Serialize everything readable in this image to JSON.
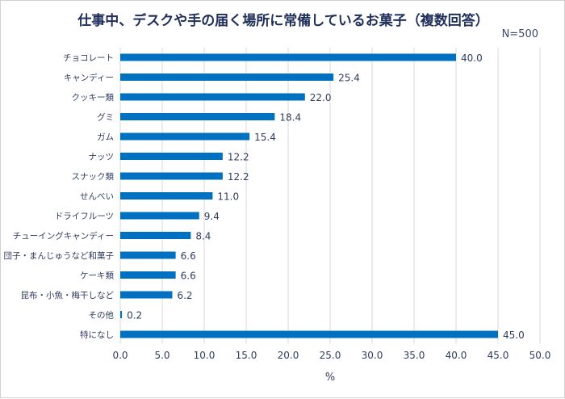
{
  "chart_data": {
    "type": "bar",
    "orientation": "horizontal",
    "title": "仕事中、デスクや手の届く場所に常備しているお菓子（複数回答）",
    "note": "N=500",
    "categories": [
      "チョコレート",
      "キャンディー",
      "クッキー類",
      "グミ",
      "ガム",
      "ナッツ",
      "スナック類",
      "せんべい",
      "ドライフルーツ",
      "チューイングキャンディー",
      "団子・まんじゅうなど和菓子",
      "ケーキ類",
      "昆布・小魚・梅干しなど",
      "その他",
      "特になし"
    ],
    "values": [
      40.0,
      25.4,
      22.0,
      18.4,
      15.4,
      12.2,
      12.2,
      11.0,
      9.4,
      8.4,
      6.6,
      6.6,
      6.2,
      0.2,
      45.0
    ],
    "value_labels": [
      "40.0",
      "25.4",
      "22.0",
      "18.4",
      "15.4",
      "12.2",
      "12.2",
      "11.0",
      "9.4",
      "8.4",
      "6.6",
      "6.6",
      "6.2",
      "0.2",
      "45.0"
    ],
    "xlabel": "%",
    "xlim": [
      0,
      50
    ],
    "xticks": [
      "0.0",
      "5.0",
      "10.0",
      "15.0",
      "20.0",
      "25.0",
      "30.0",
      "35.0",
      "40.0",
      "45.0",
      "50.0"
    ],
    "grid": true,
    "bar_color": "#0070c0"
  }
}
